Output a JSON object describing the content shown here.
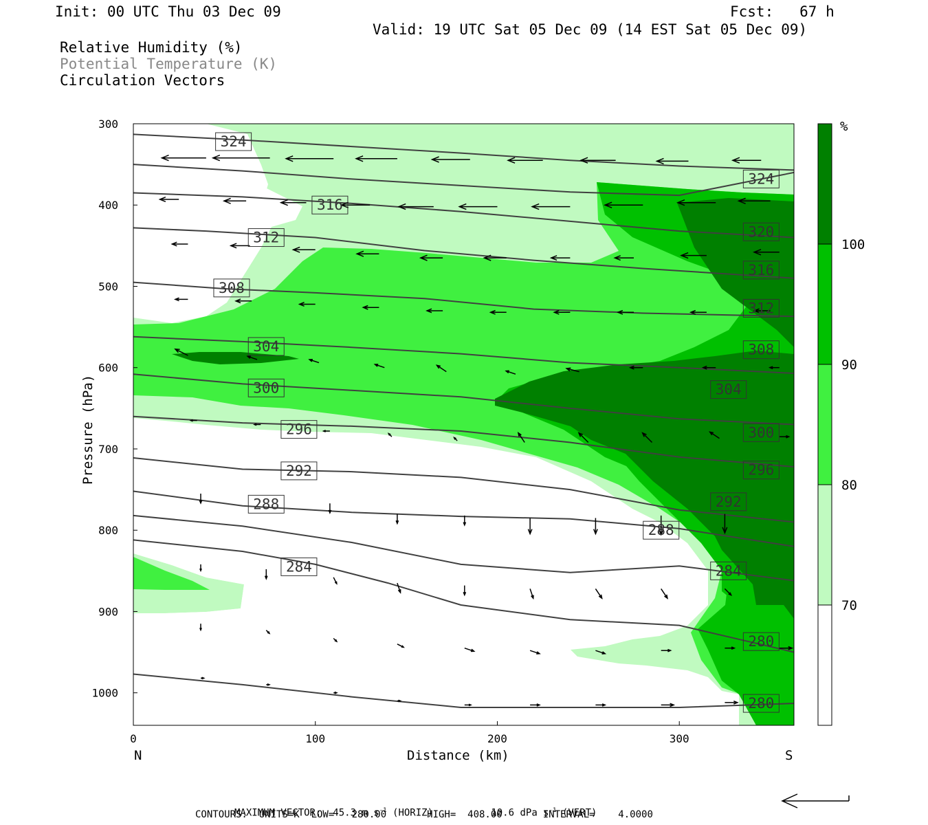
{
  "header": {
    "init": "Init: 00 UTC Thu 03 Dec 09",
    "fcst": "Fcst:   67 h",
    "valid": "Valid: 19 UTC Sat 05 Dec 09 (14 EST Sat 05 Dec 09)"
  },
  "fields": {
    "rh": "Relative Humidity (%)",
    "theta": "Potential Temperature (K)",
    "vectors": "Circulation Vectors"
  },
  "footer": {
    "max_vector_label": "MAXIMUM VECTOR:",
    "max_vector_horiz": "45.3 m s",
    "max_vector_horiz_unit": "(HORIZ)",
    "max_vector_vert": "10.6 dPa s",
    "max_vector_vert_unit": "(VERT)",
    "contours_line": "CONTOURS:  UNITS=K  LOW=   280.00       HIGH=  408.00       INTERVAL=    4.0000"
  },
  "chart_data": {
    "type": "contour",
    "xlabel": "Distance (km)",
    "ylabel": "Pressure (hPa)",
    "x_ticks": [
      0,
      100,
      200,
      300
    ],
    "y_ticks": [
      300,
      400,
      500,
      600,
      700,
      800,
      900,
      1000
    ],
    "xlim": [
      0,
      363
    ],
    "ylim": [
      300,
      1040
    ],
    "x_end_labels": {
      "left": "N",
      "right": "S"
    },
    "colorbar": {
      "unit": "%",
      "levels": [
        70,
        80,
        90,
        100
      ],
      "colors": [
        "#ffffff",
        "#c0fac0",
        "#40f040",
        "#00c000",
        "#008000"
      ]
    },
    "rh_colors": {
      "c70": "#c0fac0",
      "c80": "#40f040",
      "c90": "#00c000",
      "c100": "#008000"
    },
    "theta_line_color": "#404040",
    "theta_contours": [
      {
        "value": 324,
        "pts": [
          [
            0,
            313
          ],
          [
            60,
            320
          ],
          [
            120,
            328
          ],
          [
            180,
            336
          ],
          [
            240,
            345
          ],
          [
            300,
            352
          ],
          [
            363,
            357
          ]
        ],
        "labels": [
          [
            55,
            322
          ],
          [
            345,
            368
          ]
        ]
      },
      {
        "value": 324,
        "pts": [
          [
            0,
            350
          ],
          [
            60,
            358
          ],
          [
            120,
            368
          ],
          [
            180,
            376
          ],
          [
            240,
            384
          ],
          [
            300,
            388
          ],
          [
            363,
            360
          ]
        ],
        "labels": []
      },
      {
        "value": 320,
        "pts": [
          [
            0,
            385
          ],
          [
            60,
            390
          ],
          [
            120,
            398
          ],
          [
            180,
            408
          ],
          [
            240,
            420
          ],
          [
            300,
            432
          ],
          [
            363,
            440
          ]
        ],
        "labels": [
          [
            345,
            433
          ]
        ]
      },
      {
        "value": 316,
        "pts": [
          [
            0,
            428
          ],
          [
            40,
            432
          ],
          [
            100,
            440
          ],
          [
            160,
            456
          ],
          [
            220,
            468
          ],
          [
            280,
            478
          ],
          [
            363,
            490
          ]
        ],
        "labels": [
          [
            108,
            400
          ],
          [
            345,
            480
          ]
        ]
      },
      {
        "value": 312,
        "pts": [
          [
            0,
            495
          ],
          [
            50,
            503
          ],
          [
            100,
            508
          ],
          [
            160,
            515
          ],
          [
            220,
            528
          ],
          [
            280,
            533
          ],
          [
            363,
            537
          ]
        ],
        "labels": [
          [
            73,
            440
          ],
          [
            345,
            527
          ]
        ]
      },
      {
        "value": 308,
        "pts": [
          [
            0,
            562
          ],
          [
            60,
            568
          ],
          [
            120,
            575
          ],
          [
            180,
            583
          ],
          [
            240,
            594
          ],
          [
            300,
            600
          ],
          [
            363,
            607
          ]
        ],
        "labels": [
          [
            54,
            502
          ],
          [
            345,
            578
          ]
        ]
      },
      {
        "value": 304,
        "pts": [
          [
            0,
            608
          ],
          [
            60,
            620
          ],
          [
            120,
            628
          ],
          [
            180,
            636
          ],
          [
            240,
            650
          ],
          [
            300,
            663
          ],
          [
            363,
            670
          ]
        ],
        "labels": [
          [
            73,
            574
          ],
          [
            327,
            627
          ]
        ]
      },
      {
        "value": 300,
        "pts": [
          [
            0,
            660
          ],
          [
            60,
            668
          ],
          [
            120,
            672
          ],
          [
            180,
            678
          ],
          [
            240,
            692
          ],
          [
            300,
            710
          ],
          [
            363,
            722
          ]
        ],
        "labels": [
          [
            73,
            625
          ],
          [
            345,
            680
          ]
        ]
      },
      {
        "value": 296,
        "pts": [
          [
            0,
            711
          ],
          [
            60,
            725
          ],
          [
            120,
            728
          ],
          [
            180,
            735
          ],
          [
            240,
            750
          ],
          [
            300,
            775
          ],
          [
            363,
            790
          ]
        ],
        "labels": [
          [
            91,
            676
          ],
          [
            345,
            726
          ]
        ]
      },
      {
        "value": 292,
        "pts": [
          [
            0,
            752
          ],
          [
            60,
            770
          ],
          [
            120,
            778
          ],
          [
            180,
            783
          ],
          [
            240,
            786
          ],
          [
            300,
            798
          ],
          [
            363,
            820
          ]
        ],
        "labels": [
          [
            91,
            727
          ],
          [
            327,
            765
          ]
        ]
      },
      {
        "value": 288,
        "pts": [
          [
            0,
            782
          ],
          [
            60,
            795
          ],
          [
            120,
            815
          ],
          [
            180,
            842
          ],
          [
            240,
            852
          ],
          [
            300,
            844
          ],
          [
            363,
            862
          ]
        ],
        "labels": [
          [
            73,
            768
          ],
          [
            290,
            800
          ]
        ]
      },
      {
        "value": 284,
        "pts": [
          [
            0,
            812
          ],
          [
            60,
            826
          ],
          [
            100,
            842
          ],
          [
            140,
            865
          ],
          [
            180,
            892
          ],
          [
            240,
            910
          ],
          [
            300,
            917
          ],
          [
            363,
            950
          ]
        ],
        "labels": [
          [
            91,
            845
          ],
          [
            327,
            850
          ]
        ]
      },
      {
        "value": 280,
        "pts": [
          [
            0,
            977
          ],
          [
            60,
            990
          ],
          [
            120,
            1005
          ],
          [
            180,
            1018
          ],
          [
            240,
            1018
          ],
          [
            300,
            1018
          ],
          [
            363,
            1013
          ]
        ],
        "labels": [
          [
            345,
            937
          ],
          [
            345,
            1013
          ]
        ]
      }
    ],
    "vectors": [
      [
        0,
        340,
        -20,
        0
      ],
      [
        40,
        342,
        -14,
        0
      ],
      [
        75,
        342,
        -18,
        0
      ],
      [
        110,
        343,
        -15,
        0
      ],
      [
        145,
        343,
        -13,
        0
      ],
      [
        185,
        344,
        -12,
        0
      ],
      [
        225,
        345,
        -11,
        0
      ],
      [
        265,
        345,
        -11,
        0
      ],
      [
        305,
        346,
        -10,
        0
      ],
      [
        345,
        345,
        -9,
        0
      ],
      [
        25,
        393,
        -6,
        0
      ],
      [
        62,
        395,
        -7,
        0
      ],
      [
        95,
        397,
        -8,
        0
      ],
      [
        130,
        400,
        -9,
        0
      ],
      [
        165,
        402,
        -11,
        0
      ],
      [
        200,
        402,
        -12,
        0
      ],
      [
        240,
        402,
        -12,
        0
      ],
      [
        280,
        400,
        -12,
        0
      ],
      [
        320,
        397,
        -12,
        0
      ],
      [
        350,
        395,
        -10,
        0
      ],
      [
        30,
        448,
        -5,
        0
      ],
      [
        64,
        450,
        -6,
        0
      ],
      [
        100,
        455,
        -7,
        0
      ],
      [
        135,
        460,
        -7,
        0
      ],
      [
        170,
        465,
        -7,
        0
      ],
      [
        205,
        465,
        -7,
        0
      ],
      [
        240,
        465,
        -6,
        0
      ],
      [
        275,
        465,
        -6,
        0
      ],
      [
        315,
        462,
        -8,
        0
      ],
      [
        355,
        458,
        -8,
        0
      ],
      [
        30,
        516,
        -4,
        0
      ],
      [
        65,
        518,
        -5,
        0
      ],
      [
        100,
        522,
        -5,
        0
      ],
      [
        135,
        526,
        -5,
        0
      ],
      [
        170,
        530,
        -5,
        0
      ],
      [
        205,
        532,
        -5,
        0
      ],
      [
        240,
        532,
        -5,
        0
      ],
      [
        275,
        532,
        -5,
        0
      ],
      [
        315,
        532,
        -5,
        0
      ],
      [
        350,
        530,
        -5,
        0
      ],
      [
        30,
        585,
        -4,
        -2
      ],
      [
        68,
        590,
        -3,
        -1
      ],
      [
        102,
        594,
        -3,
        -1
      ],
      [
        138,
        600,
        -3,
        -1
      ],
      [
        172,
        605,
        -3,
        -2
      ],
      [
        210,
        608,
        -3,
        -1
      ],
      [
        245,
        605,
        -4,
        -1
      ],
      [
        280,
        600,
        -4,
        0
      ],
      [
        320,
        600,
        -4,
        0
      ],
      [
        355,
        600,
        -3,
        0
      ],
      [
        35,
        665,
        -2,
        0
      ],
      [
        70,
        670,
        -2,
        0
      ],
      [
        108,
        678,
        -2,
        0
      ],
      [
        142,
        685,
        -1,
        -1
      ],
      [
        178,
        690,
        -1,
        -1
      ],
      [
        215,
        692,
        -2,
        -3
      ],
      [
        250,
        692,
        -3,
        -3
      ],
      [
        285,
        692,
        -3,
        -3
      ],
      [
        322,
        687,
        -3,
        -2
      ],
      [
        355,
        685,
        3,
        0
      ],
      [
        37,
        755,
        0,
        3
      ],
      [
        108,
        767,
        0,
        3
      ],
      [
        145,
        780,
        0,
        3
      ],
      [
        182,
        782,
        0,
        3
      ],
      [
        218,
        785,
        0,
        5
      ],
      [
        254,
        785,
        0,
        5
      ],
      [
        290,
        782,
        0,
        6
      ],
      [
        325,
        780,
        0,
        6
      ],
      [
        37,
        842,
        0,
        2
      ],
      [
        73,
        848,
        0,
        3
      ],
      [
        110,
        858,
        1,
        2
      ],
      [
        145,
        865,
        1,
        3
      ],
      [
        182,
        868,
        0,
        3
      ],
      [
        218,
        872,
        1,
        3
      ],
      [
        254,
        872,
        2,
        3
      ],
      [
        290,
        872,
        2,
        3
      ],
      [
        325,
        872,
        2,
        2
      ],
      [
        37,
        915,
        0,
        2
      ],
      [
        73,
        923,
        1,
        1
      ],
      [
        110,
        933,
        1,
        1
      ],
      [
        145,
        940,
        2,
        1
      ],
      [
        182,
        945,
        3,
        1
      ],
      [
        218,
        948,
        3,
        1
      ],
      [
        254,
        948,
        3,
        1
      ],
      [
        290,
        948,
        3,
        0
      ],
      [
        325,
        945,
        3,
        0
      ],
      [
        355,
        945,
        4,
        0
      ],
      [
        37,
        982,
        1,
        0
      ],
      [
        73,
        990,
        1,
        0
      ],
      [
        110,
        1000,
        1,
        0
      ],
      [
        145,
        1010,
        1,
        0
      ],
      [
        182,
        1015,
        2,
        0
      ],
      [
        218,
        1015,
        3,
        0
      ],
      [
        254,
        1015,
        3,
        0
      ],
      [
        290,
        1015,
        4,
        0
      ],
      [
        325,
        1012,
        4,
        0
      ]
    ]
  }
}
